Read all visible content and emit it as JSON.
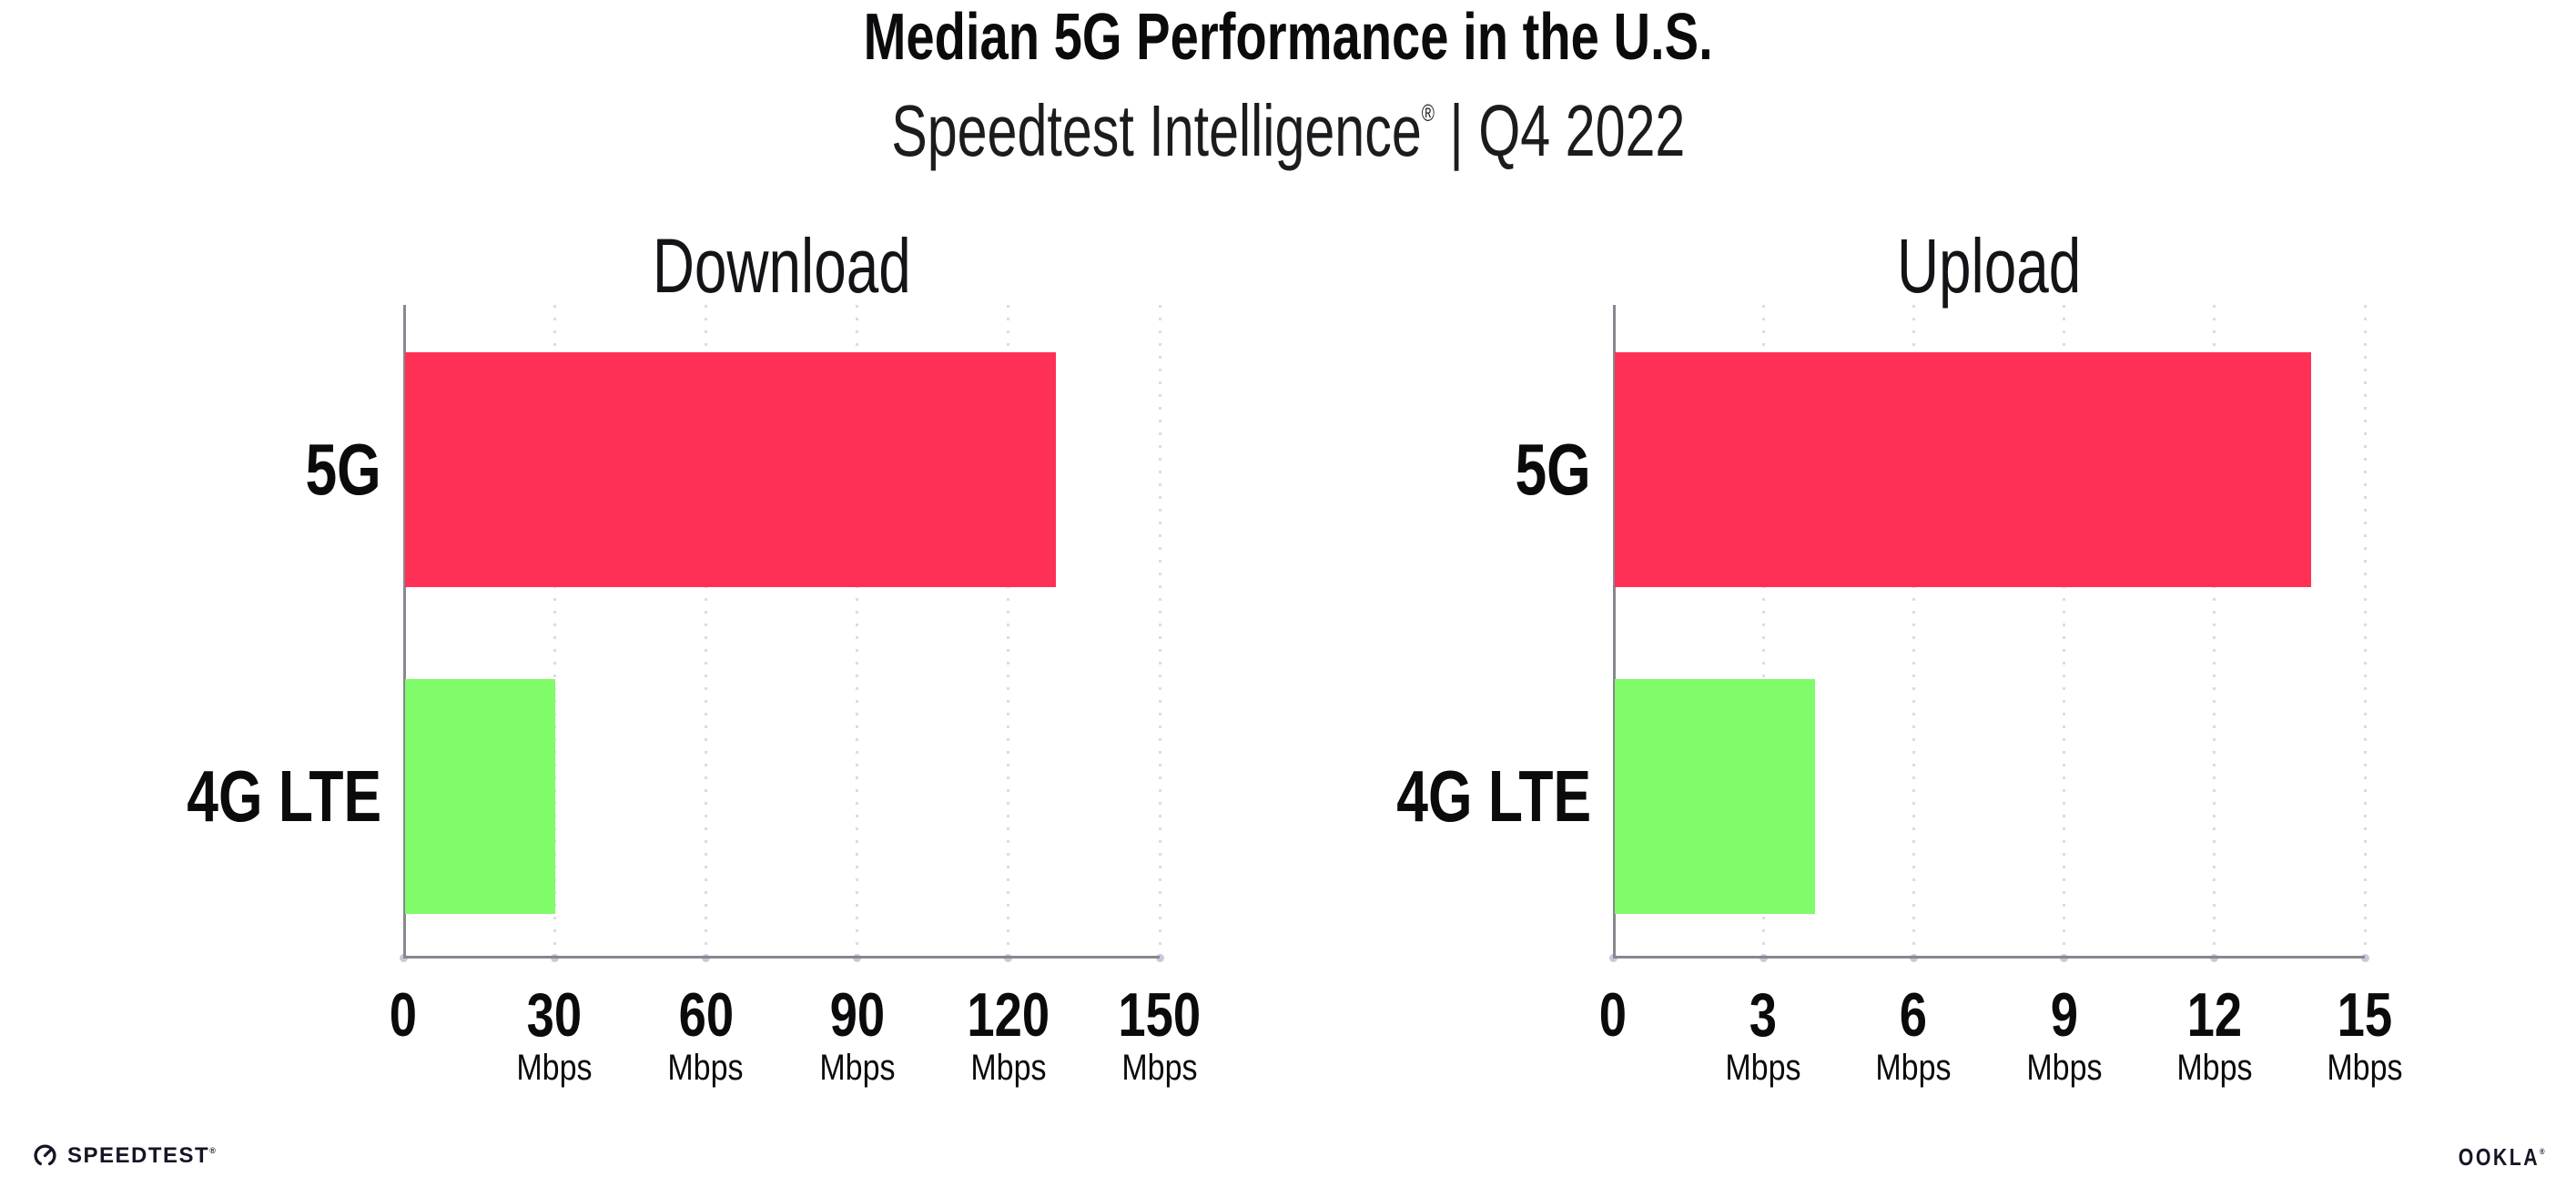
{
  "header": {
    "title": "Median 5G Performance in the U.S.",
    "subtitle_brand": "Speedtest Intelligence",
    "subtitle_reg": "®",
    "subtitle_rest": " | Q4 2022"
  },
  "chart_data": {
    "type": "bar",
    "orientation": "horizontal",
    "title": "Median 5G Performance in the U.S.",
    "subtitle": "Speedtest Intelligence® | Q4 2022",
    "grid": "dotted-vertical",
    "legend_position": "none",
    "panels": [
      {
        "title": "Download",
        "categories": [
          "5G",
          "4G LTE"
        ],
        "values": [
          129,
          29.7
        ],
        "unit": "Mbps",
        "xlim": [
          0,
          150
        ],
        "ticks": [
          0,
          30,
          60,
          90,
          120,
          150
        ]
      },
      {
        "title": "Upload",
        "categories": [
          "5G",
          "4G LTE"
        ],
        "values": [
          13.9,
          4.0
        ],
        "unit": "Mbps",
        "xlim": [
          0,
          15
        ],
        "ticks": [
          0,
          3,
          6,
          9,
          12,
          15
        ]
      }
    ],
    "series_colors": {
      "5G": "#ff3056",
      "4G LTE": "#80fb69"
    },
    "axis_color": "#87878f",
    "gridline_color": "#d9dbe8"
  },
  "footer": {
    "speedtest_label": "SPEEDTEST",
    "speedtest_reg": "®",
    "ookla_label": "OOKLA",
    "ookla_reg": "®"
  }
}
